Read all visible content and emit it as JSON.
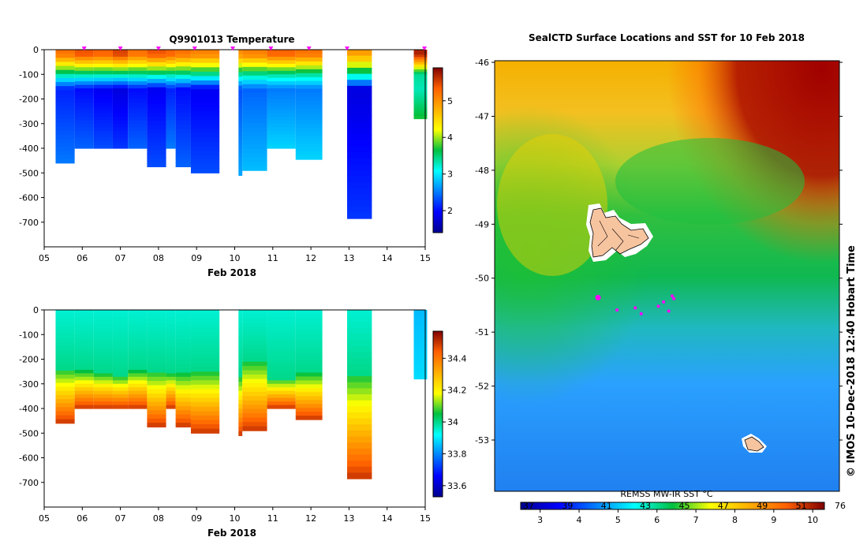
{
  "chart_data": [
    {
      "type": "heatmap",
      "title": "Q9901013  Temperature",
      "xlabel": "Feb 2018",
      "ylabel": "",
      "xlim": [
        5,
        15
      ],
      "ylim": [
        -800,
        0
      ],
      "x_ticks": [
        "05",
        "06",
        "07",
        "08",
        "09",
        "10",
        "11",
        "12",
        "13",
        "14",
        "15"
      ],
      "y_ticks": [
        "0",
        "-100",
        "-200",
        "-300",
        "-400",
        "-500",
        "-600",
        "-700"
      ],
      "colorbar": {
        "min": 1.4,
        "max": 5.9,
        "ticks": [
          "2",
          "3",
          "4",
          "5"
        ]
      },
      "profile_markers": [
        6.05,
        7.0,
        8.0,
        8.95,
        9.95,
        10.95,
        11.95,
        12.95,
        14.98
      ],
      "profiles": [
        {
          "x0": 5.3,
          "x1": 5.8,
          "depth": 460,
          "surface": 5.2,
          "mid": 2.1
        },
        {
          "x0": 5.8,
          "x1": 6.3,
          "depth": 400,
          "surface": 5.4,
          "mid": 2.0
        },
        {
          "x0": 6.3,
          "x1": 6.8,
          "depth": 400,
          "surface": 5.3,
          "mid": 1.9
        },
        {
          "x0": 6.8,
          "x1": 7.2,
          "depth": 400,
          "surface": 5.5,
          "mid": 1.8
        },
        {
          "x0": 7.2,
          "x1": 7.7,
          "depth": 400,
          "surface": 5.2,
          "mid": 2.0
        },
        {
          "x0": 7.7,
          "x1": 8.2,
          "depth": 475,
          "surface": 5.4,
          "mid": 1.9
        },
        {
          "x0": 8.2,
          "x1": 8.45,
          "depth": 400,
          "surface": 5.3,
          "mid": 2.1
        },
        {
          "x0": 8.45,
          "x1": 8.85,
          "depth": 475,
          "surface": 5.2,
          "mid": 2.0
        },
        {
          "x0": 8.85,
          "x1": 9.6,
          "depth": 500,
          "surface": 5.1,
          "mid": 1.9
        },
        {
          "x0": 10.1,
          "x1": 10.2,
          "depth": 510,
          "surface": 5.0,
          "mid": 2.3
        },
        {
          "x0": 10.2,
          "x1": 10.85,
          "depth": 490,
          "surface": 5.1,
          "mid": 2.4
        },
        {
          "x0": 10.85,
          "x1": 11.6,
          "depth": 400,
          "surface": 5.3,
          "mid": 2.5
        },
        {
          "x0": 11.6,
          "x1": 12.3,
          "depth": 445,
          "surface": 5.2,
          "mid": 2.5
        },
        {
          "x0": 12.95,
          "x1": 13.6,
          "depth": 685,
          "surface": 4.9,
          "mid": 1.8
        },
        {
          "x0": 14.7,
          "x1": 15.05,
          "depth": 280,
          "surface": 5.7,
          "mid": 3.3
        }
      ]
    },
    {
      "type": "heatmap",
      "title": "",
      "xlabel": "Feb 2018",
      "ylabel": "",
      "xlim": [
        5,
        15
      ],
      "ylim": [
        -800,
        0
      ],
      "x_ticks": [
        "05",
        "06",
        "07",
        "08",
        "09",
        "10",
        "11",
        "12",
        "13",
        "14",
        "15"
      ],
      "y_ticks": [
        "0",
        "-100",
        "-200",
        "-300",
        "-400",
        "-500",
        "-600",
        "-700"
      ],
      "colorbar": {
        "min": 33.53,
        "max": 34.57,
        "ticks": [
          "33.6",
          "33.8",
          "34",
          "34.2",
          "34.4"
        ]
      },
      "profiles": [
        {
          "x0": 5.3,
          "x1": 5.8,
          "depth": 460,
          "surface": 33.95,
          "halocline": 240
        },
        {
          "x0": 5.8,
          "x1": 6.3,
          "depth": 400,
          "surface": 33.95,
          "halocline": 250
        },
        {
          "x0": 6.3,
          "x1": 6.8,
          "depth": 400,
          "surface": 33.95,
          "halocline": 260
        },
        {
          "x0": 6.8,
          "x1": 7.2,
          "depth": 400,
          "surface": 33.95,
          "halocline": 270
        },
        {
          "x0": 7.2,
          "x1": 7.7,
          "depth": 400,
          "surface": 33.95,
          "halocline": 250
        },
        {
          "x0": 7.7,
          "x1": 8.2,
          "depth": 475,
          "surface": 33.95,
          "halocline": 250
        },
        {
          "x0": 8.2,
          "x1": 8.45,
          "depth": 400,
          "surface": 33.95,
          "halocline": 260
        },
        {
          "x0": 8.45,
          "x1": 8.85,
          "depth": 475,
          "surface": 33.95,
          "halocline": 260
        },
        {
          "x0": 8.85,
          "x1": 9.6,
          "depth": 500,
          "surface": 33.95,
          "halocline": 250
        },
        {
          "x0": 10.1,
          "x1": 10.2,
          "depth": 510,
          "surface": 33.95,
          "halocline": 270
        },
        {
          "x0": 10.2,
          "x1": 10.85,
          "depth": 490,
          "surface": 33.95,
          "halocline": 210
        },
        {
          "x0": 10.85,
          "x1": 11.6,
          "depth": 400,
          "surface": 33.95,
          "halocline": 280
        },
        {
          "x0": 11.6,
          "x1": 12.3,
          "depth": 445,
          "surface": 33.95,
          "halocline": 260
        },
        {
          "x0": 12.95,
          "x1": 13.6,
          "depth": 685,
          "surface": 33.95,
          "halocline": 260
        },
        {
          "x0": 14.7,
          "x1": 15.05,
          "depth": 280,
          "surface": 33.85,
          "halocline": 400
        }
      ]
    },
    {
      "type": "heatmap",
      "title": "SealCTD Surface Locations and SST for 10 Feb 2018",
      "y_ticks": [
        "-46",
        "-47",
        "-48",
        "-49",
        "-50",
        "-51",
        "-52",
        "-53"
      ],
      "ylim": [
        -53.95,
        -45.97
      ],
      "colorbar_label": "REMSS MW-IR SST °C",
      "colorbar": {
        "min": 2.5,
        "max": 10.3,
        "ticks": [
          "3",
          "4",
          "5",
          "6",
          "7",
          "8",
          "9",
          "10"
        ],
        "top_ticks": [
          "37",
          "39",
          "41",
          "43",
          "45",
          "47",
          "49",
          "51",
          "76"
        ]
      },
      "seal_locations": [
        {
          "lon_frac": 0.3,
          "lat": -50.36,
          "big": true
        },
        {
          "lon_frac": 0.355,
          "lat": -50.59
        },
        {
          "lon_frac": 0.408,
          "lat": -50.55
        },
        {
          "lon_frac": 0.425,
          "lat": -50.66
        },
        {
          "lon_frac": 0.475,
          "lat": -50.52
        },
        {
          "lon_frac": 0.49,
          "lat": -50.44
        },
        {
          "lon_frac": 0.515,
          "lat": -50.33
        },
        {
          "lon_frac": 0.52,
          "lat": -50.38
        },
        {
          "lon_frac": 0.505,
          "lat": -50.61
        }
      ]
    }
  ],
  "credit": "© IMOS 10-Dec-2018 12:40 Hobart Time",
  "colors": {
    "land": "#f7c4a0",
    "marker": "#ff00ff"
  }
}
